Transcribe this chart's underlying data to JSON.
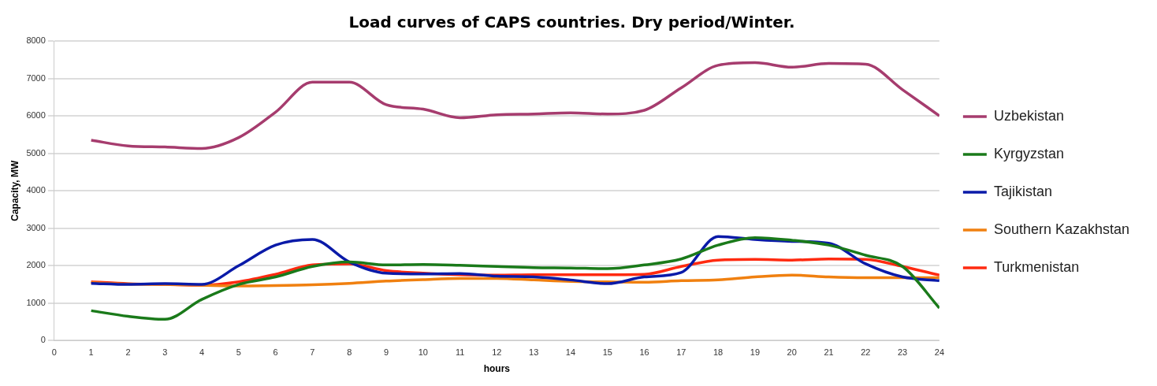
{
  "chart_data": {
    "type": "line",
    "title": "Load curves of CAPS countries. Dry period/Winter.",
    "xlabel": "hours",
    "ylabel": "Capacity, MW",
    "x": [
      1,
      2,
      3,
      4,
      5,
      6,
      7,
      8,
      9,
      10,
      11,
      12,
      13,
      14,
      15,
      16,
      17,
      18,
      19,
      20,
      21,
      22,
      23,
      24
    ],
    "series": [
      {
        "name": "Uzbekistan",
        "color": "#a63c6e",
        "values": [
          5350,
          5200,
          5170,
          5130,
          5420,
          6100,
          6900,
          6900,
          6300,
          6180,
          5950,
          6030,
          6050,
          6080,
          6050,
          6150,
          6750,
          7350,
          7420,
          7300,
          7400,
          7380,
          6700,
          6000
        ]
      },
      {
        "name": "Kyrgyzstan",
        "color": "#1a7a1a",
        "values": [
          800,
          650,
          570,
          1100,
          1500,
          1700,
          1980,
          2100,
          2020,
          2030,
          2010,
          1980,
          1950,
          1940,
          1920,
          2020,
          2180,
          2550,
          2750,
          2680,
          2550,
          2280,
          1980,
          870
        ]
      },
      {
        "name": "Tajikistan",
        "color": "#0a1aa8",
        "values": [
          1530,
          1500,
          1520,
          1500,
          2000,
          2550,
          2700,
          2100,
          1800,
          1780,
          1790,
          1720,
          1700,
          1620,
          1520,
          1700,
          1820,
          2780,
          2700,
          2650,
          2600,
          2050,
          1700,
          1600
        ]
      },
      {
        "name": "Southern Kazakhstan",
        "color": "#f08010",
        "values": [
          1550,
          1510,
          1500,
          1480,
          1460,
          1470,
          1490,
          1530,
          1590,
          1630,
          1660,
          1660,
          1620,
          1580,
          1570,
          1560,
          1600,
          1620,
          1700,
          1750,
          1700,
          1680,
          1680,
          1680
        ]
      },
      {
        "name": "Turkmenistan",
        "color": "#ff2a10",
        "values": [
          1570,
          1520,
          1500,
          1480,
          1570,
          1770,
          2020,
          2050,
          1870,
          1800,
          1760,
          1750,
          1760,
          1760,
          1760,
          1770,
          1980,
          2150,
          2170,
          2150,
          2180,
          2170,
          1980,
          1750
        ]
      }
    ],
    "xlim": [
      0,
      24
    ],
    "xticks": [
      0,
      1,
      2,
      3,
      4,
      5,
      6,
      7,
      8,
      9,
      10,
      11,
      12,
      13,
      14,
      15,
      16,
      17,
      18,
      19,
      20,
      21,
      22,
      23,
      24
    ],
    "ylim": [
      0,
      8000
    ],
    "yticks": [
      0,
      1000,
      2000,
      3000,
      4000,
      5000,
      6000,
      7000,
      8000
    ],
    "grid": "y",
    "legend": "right",
    "marker": "none",
    "line_style": "solid"
  }
}
